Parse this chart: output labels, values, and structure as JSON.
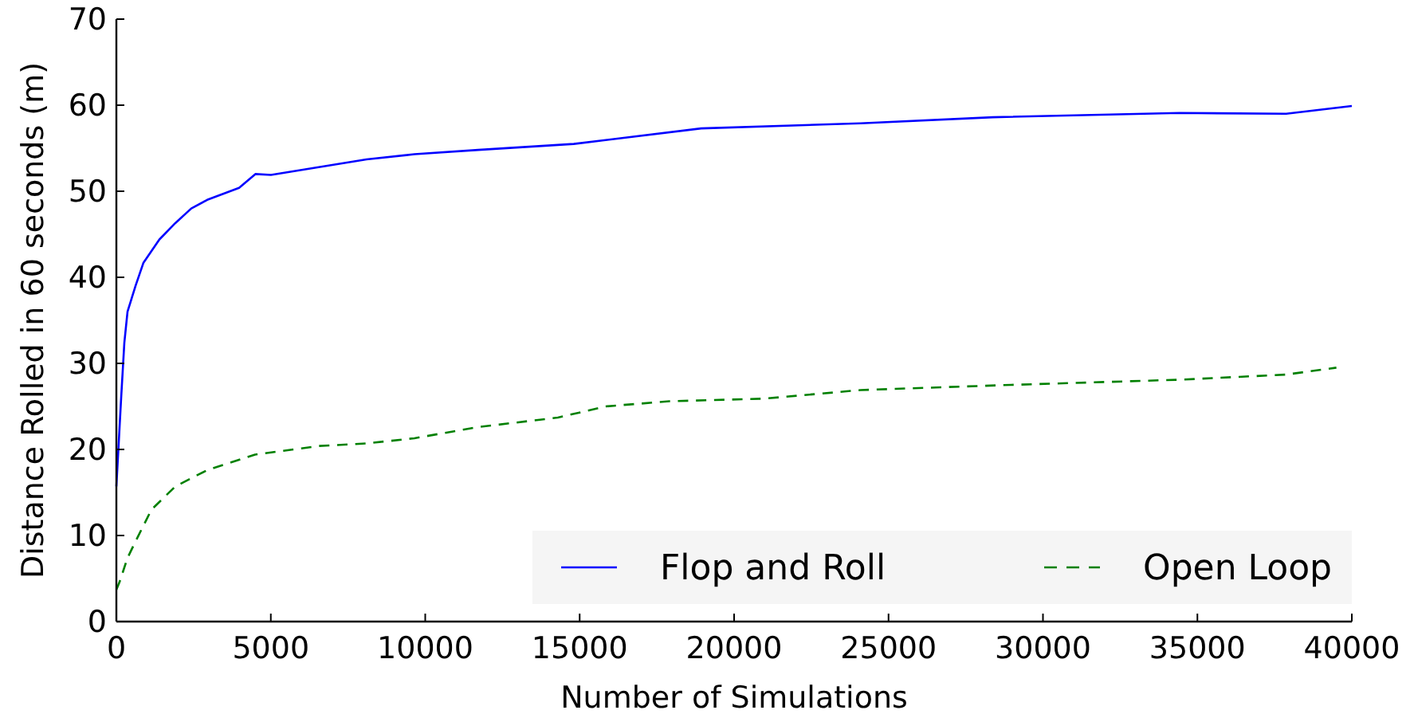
{
  "chart_data": {
    "type": "line",
    "xlabel": "Number of Simulations",
    "ylabel": "Distance Rolled in 60 seconds (m)",
    "xlim": [
      0,
      40000
    ],
    "ylim": [
      0,
      70
    ],
    "xticks": [
      0,
      5000,
      10000,
      15000,
      20000,
      25000,
      30000,
      35000,
      40000
    ],
    "yticks": [
      0,
      10,
      20,
      30,
      40,
      50,
      60,
      70
    ],
    "grid": false,
    "legend": "bottom right",
    "marker": "none",
    "series": [
      {
        "name": "Flop and Roll",
        "color": "#0000ff",
        "line_style": "solid",
        "x": [
          0,
          155,
          258,
          361,
          619,
          877,
          1393,
          1909,
          2425,
          2941,
          3973,
          4500,
          5005,
          6553,
          8101,
          9649,
          11713,
          14809,
          18937,
          24097,
          28380,
          34417,
          37874,
          40000
        ],
        "values": [
          15.7,
          26,
          32.4,
          36,
          39,
          41.7,
          44.4,
          46.3,
          48,
          49,
          50.4,
          52,
          51.9,
          52.8,
          53.7,
          54.3,
          54.8,
          55.5,
          57.3,
          57.9,
          58.6,
          59.1,
          59.0,
          59.9
        ]
      },
      {
        "name": "Open Loop",
        "color": "#008000",
        "line_style": "dashed",
        "x": [
          0,
          103,
          361,
          619,
          1135,
          1909,
          2941,
          4489,
          6553,
          8101,
          9649,
          11713,
          14293,
          15841,
          17905,
          20977,
          24097,
          28960,
          34417,
          37874,
          39500
        ],
        "values": [
          3.7,
          4.6,
          7.4,
          9.3,
          13,
          15.7,
          17.6,
          19.4,
          20.4,
          20.7,
          21.3,
          22.6,
          23.7,
          25,
          25.6,
          25.9,
          26.9,
          27.5,
          28.1,
          28.7,
          29.5
        ]
      }
    ]
  }
}
